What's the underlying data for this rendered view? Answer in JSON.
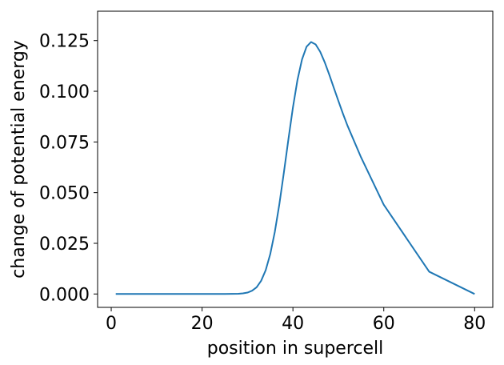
{
  "chart_data": {
    "type": "line",
    "title": "",
    "xlabel": "position in supercell",
    "ylabel": "change of potential energy",
    "xlim": [
      -3,
      84
    ],
    "ylim": [
      -0.0066,
      0.1395
    ],
    "x_ticks": [
      0,
      20,
      40,
      60,
      80
    ],
    "y_ticks": [
      0.0,
      0.025,
      0.05,
      0.075,
      0.1,
      0.125
    ],
    "x_tick_labels": [
      "0",
      "20",
      "40",
      "60",
      "80"
    ],
    "y_tick_labels": [
      "0.000",
      "0.025",
      "0.050",
      "0.075",
      "0.100",
      "0.125"
    ],
    "grid": false,
    "series": [
      {
        "color": "#1f77b4",
        "x": [
          1,
          10,
          20,
          25,
          28,
          29,
          30,
          31,
          32,
          33,
          34,
          35,
          36,
          37,
          38,
          39,
          40,
          41,
          42,
          43,
          44,
          45,
          46,
          47,
          48,
          49,
          50,
          51,
          52,
          55,
          60,
          70,
          80
        ],
        "y": [
          0.0,
          0.0,
          0.0,
          0.0,
          0.0001,
          0.0003,
          0.0007,
          0.0016,
          0.0033,
          0.0065,
          0.0117,
          0.0196,
          0.0305,
          0.0441,
          0.0598,
          0.0762,
          0.092,
          0.1056,
          0.1157,
          0.122,
          0.1243,
          0.1231,
          0.1195,
          0.1143,
          0.1082,
          0.1017,
          0.0953,
          0.089,
          0.0831,
          0.0674,
          0.044,
          0.011,
          0.0
        ]
      }
    ]
  }
}
